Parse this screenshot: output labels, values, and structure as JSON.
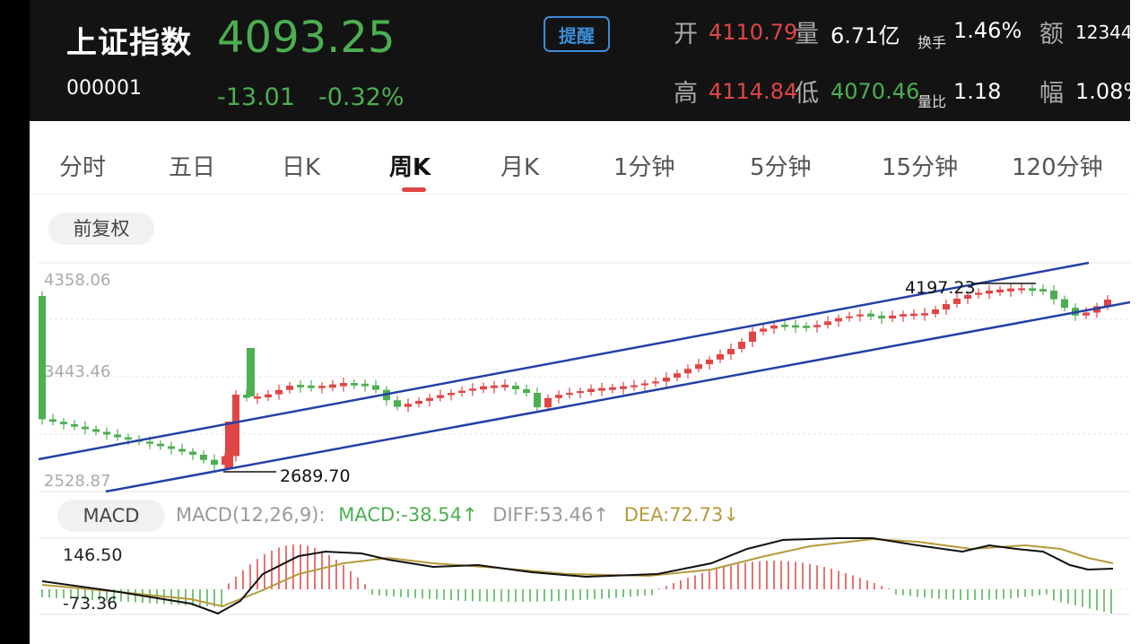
{
  "quote": {
    "name": "上证指数",
    "code": "000001",
    "price": "4093.25",
    "change": "-13.01",
    "change_pct": "-0.32%",
    "alert_label": "提醒",
    "open_label": "开",
    "open": "4110.79",
    "volume_label": "量",
    "volume": "6.71亿",
    "turnover_label": "换手",
    "turnover": "1.46%",
    "amount_label": "额",
    "amount": "12344",
    "high_label": "高",
    "high": "4114.84",
    "low_label": "低",
    "low": "4070.46",
    "vol_ratio_label": "量比",
    "vol_ratio": "1.18",
    "amplitude_label": "幅",
    "amplitude": "1.08%"
  },
  "tabs": [
    "分时",
    "五日",
    "日K",
    "周K",
    "月K",
    "1分钟",
    "5分钟",
    "15分钟",
    "120分钟"
  ],
  "active_tab": "周K",
  "adjust_label": "前复权",
  "kline": {
    "y_labels": [
      "4358.06",
      "3443.46",
      "2528.87"
    ],
    "low_marker": "2689.70",
    "high_marker": "4197.23"
  },
  "macd": {
    "chip": "MACD",
    "params": "MACD(12,26,9):",
    "macd": "MACD:-38.54",
    "diff": "DIFF:53.46",
    "dea": "DEA:72.73",
    "y_top": "146.50",
    "y_bottom": "-73.36"
  },
  "colors": {
    "up": "#e04545",
    "down": "#4caf50",
    "channel": "#2340a8",
    "dea_line": "#b59a3a",
    "diff_line": "#111111"
  }
}
